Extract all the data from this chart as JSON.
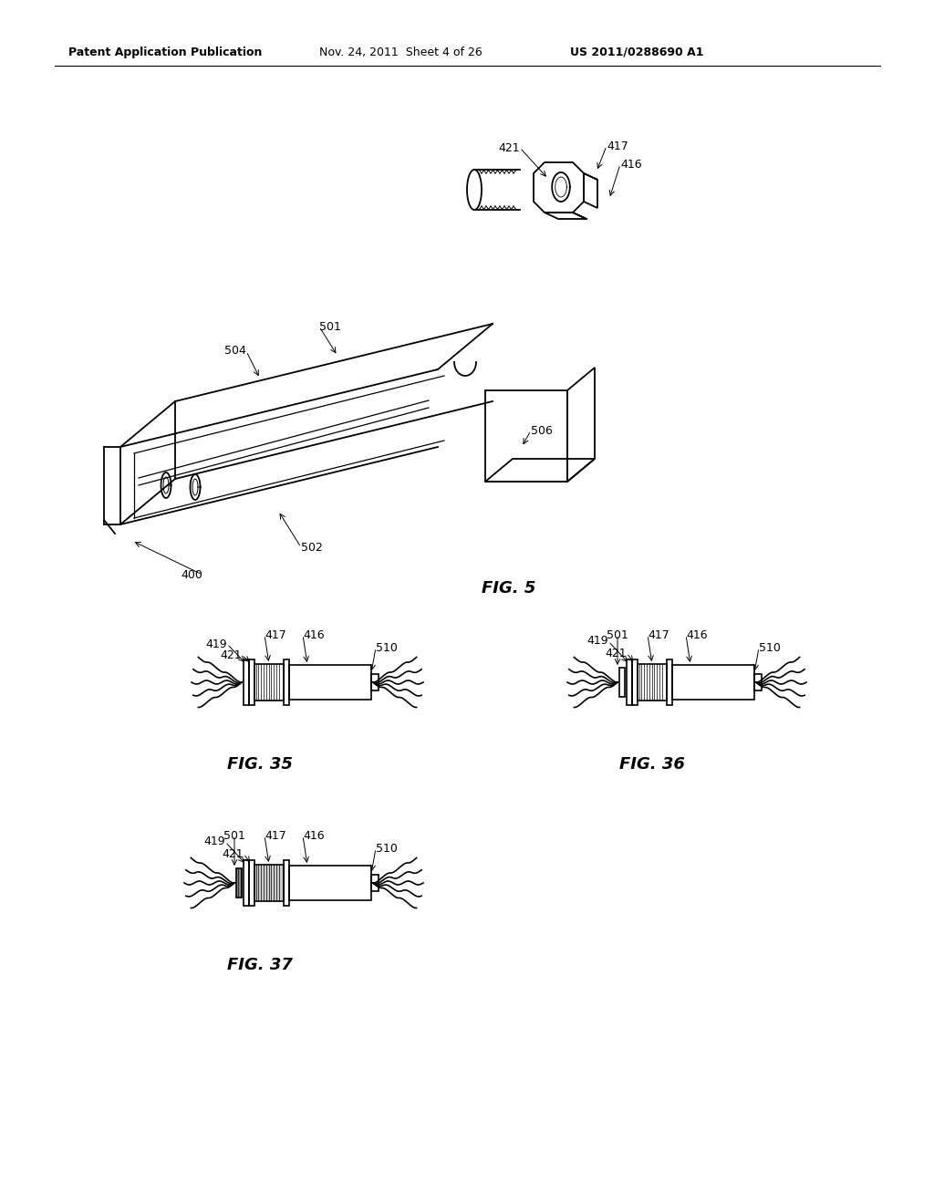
{
  "bg_color": "#ffffff",
  "line_color": "#000000",
  "header_text": "Patent Application Publication",
  "header_date": "Nov. 24, 2011  Sheet 4 of 26",
  "header_patent": "US 2011/0288690 A1",
  "fig5_label": "FIG. 5",
  "fig35_label": "FIG. 35",
  "fig36_label": "FIG. 36",
  "fig37_label": "FIG. 37",
  "label_fontsize": 9,
  "header_fontsize": 9,
  "fig_label_fontsize": 13
}
